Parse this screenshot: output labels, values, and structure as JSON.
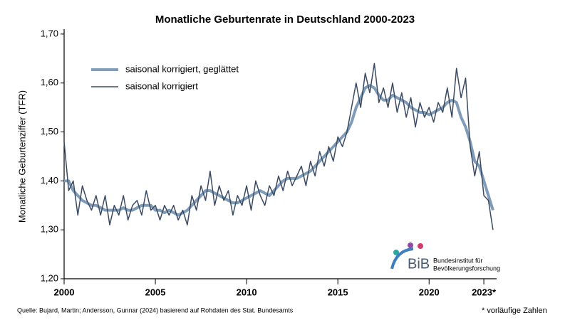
{
  "chart_data": {
    "type": "line",
    "title": "Monatliche Geburtenrate in Deutschland 2000-2023",
    "y_label": "Monatliche Geburtenziffer (TFR)",
    "source": "Quelle: Bujard, Martin; Andersson, Gunnar (2024) basierend auf Rohdaten des Stat. Bundesamts",
    "footnote": "* vorläufige Zahlen",
    "logo": {
      "short": "BiB",
      "line1": "Bundesinstitut für",
      "line2": "Bevölkerungsforschung"
    },
    "x": [
      2000,
      2000.25,
      2000.5,
      2000.75,
      2001,
      2001.25,
      2001.5,
      2001.75,
      2002,
      2002.25,
      2002.5,
      2002.75,
      2003,
      2003.25,
      2003.5,
      2003.75,
      2004,
      2004.25,
      2004.5,
      2004.75,
      2005,
      2005.25,
      2005.5,
      2005.75,
      2006,
      2006.25,
      2006.5,
      2006.75,
      2007,
      2007.25,
      2007.5,
      2007.75,
      2008,
      2008.25,
      2008.5,
      2008.75,
      2009,
      2009.25,
      2009.5,
      2009.75,
      2010,
      2010.25,
      2010.5,
      2010.75,
      2011,
      2011.25,
      2011.5,
      2011.75,
      2012,
      2012.25,
      2012.5,
      2012.75,
      2013,
      2013.25,
      2013.5,
      2013.75,
      2014,
      2014.25,
      2014.5,
      2014.75,
      2015,
      2015.25,
      2015.5,
      2015.75,
      2016,
      2016.25,
      2016.5,
      2016.75,
      2017,
      2017.25,
      2017.5,
      2017.75,
      2018,
      2018.25,
      2018.5,
      2018.75,
      2019,
      2019.25,
      2019.5,
      2019.75,
      2020,
      2020.25,
      2020.5,
      2020.75,
      2021,
      2021.25,
      2021.5,
      2021.75,
      2022,
      2022.25,
      2022.5,
      2022.75,
      2023,
      2023.25,
      2023.5
    ],
    "series": [
      {
        "name": "saisonal korrigiert, geglättet",
        "color": "#7f9cb8",
        "width": 4,
        "values": [
          1.4,
          1.4,
          1.38,
          1.37,
          1.36,
          1.355,
          1.35,
          1.35,
          1.345,
          1.34,
          1.34,
          1.34,
          1.34,
          1.345,
          1.34,
          1.34,
          1.345,
          1.35,
          1.35,
          1.35,
          1.34,
          1.34,
          1.335,
          1.34,
          1.335,
          1.33,
          1.335,
          1.34,
          1.35,
          1.36,
          1.37,
          1.38,
          1.38,
          1.375,
          1.37,
          1.365,
          1.36,
          1.355,
          1.355,
          1.36,
          1.365,
          1.37,
          1.375,
          1.38,
          1.375,
          1.37,
          1.38,
          1.39,
          1.4,
          1.405,
          1.405,
          1.405,
          1.41,
          1.415,
          1.42,
          1.43,
          1.44,
          1.45,
          1.46,
          1.47,
          1.48,
          1.49,
          1.5,
          1.52,
          1.55,
          1.57,
          1.59,
          1.595,
          1.59,
          1.575,
          1.565,
          1.565,
          1.575,
          1.57,
          1.565,
          1.56,
          1.55,
          1.545,
          1.54,
          1.54,
          1.535,
          1.54,
          1.545,
          1.55,
          1.56,
          1.565,
          1.56,
          1.53,
          1.51,
          1.48,
          1.44,
          1.43,
          1.4,
          1.37,
          1.34
        ]
      },
      {
        "name": "saisonal korrigiert",
        "color": "#3a4a62",
        "width": 1.5,
        "values": [
          1.48,
          1.38,
          1.4,
          1.33,
          1.39,
          1.36,
          1.34,
          1.37,
          1.33,
          1.37,
          1.31,
          1.35,
          1.33,
          1.37,
          1.32,
          1.35,
          1.36,
          1.33,
          1.38,
          1.34,
          1.35,
          1.32,
          1.35,
          1.33,
          1.35,
          1.32,
          1.34,
          1.31,
          1.37,
          1.34,
          1.39,
          1.36,
          1.42,
          1.35,
          1.39,
          1.36,
          1.38,
          1.33,
          1.37,
          1.35,
          1.39,
          1.34,
          1.4,
          1.37,
          1.35,
          1.39,
          1.37,
          1.41,
          1.38,
          1.42,
          1.39,
          1.41,
          1.43,
          1.39,
          1.44,
          1.41,
          1.46,
          1.43,
          1.47,
          1.44,
          1.49,
          1.47,
          1.5,
          1.55,
          1.6,
          1.55,
          1.62,
          1.58,
          1.64,
          1.56,
          1.59,
          1.55,
          1.6,
          1.54,
          1.58,
          1.53,
          1.57,
          1.51,
          1.56,
          1.53,
          1.55,
          1.52,
          1.56,
          1.54,
          1.59,
          1.53,
          1.63,
          1.57,
          1.61,
          1.47,
          1.41,
          1.46,
          1.37,
          1.36,
          1.3
        ]
      }
    ],
    "xlim": [
      2000,
      2023.7
    ],
    "ylim": [
      1.2,
      1.71
    ],
    "xticks": [
      2000,
      2005,
      2010,
      2015,
      2020,
      {
        "value": 2023,
        "label": "2023*"
      }
    ],
    "yticks": [
      {
        "value": 1.2,
        "label": "1,20"
      },
      {
        "value": 1.3,
        "label": "1,30"
      },
      {
        "value": 1.4,
        "label": "1,40"
      },
      {
        "value": 1.5,
        "label": "1,50"
      },
      {
        "value": 1.6,
        "label": "1,60"
      },
      {
        "value": 1.7,
        "label": "1,70"
      }
    ],
    "grid": false
  }
}
